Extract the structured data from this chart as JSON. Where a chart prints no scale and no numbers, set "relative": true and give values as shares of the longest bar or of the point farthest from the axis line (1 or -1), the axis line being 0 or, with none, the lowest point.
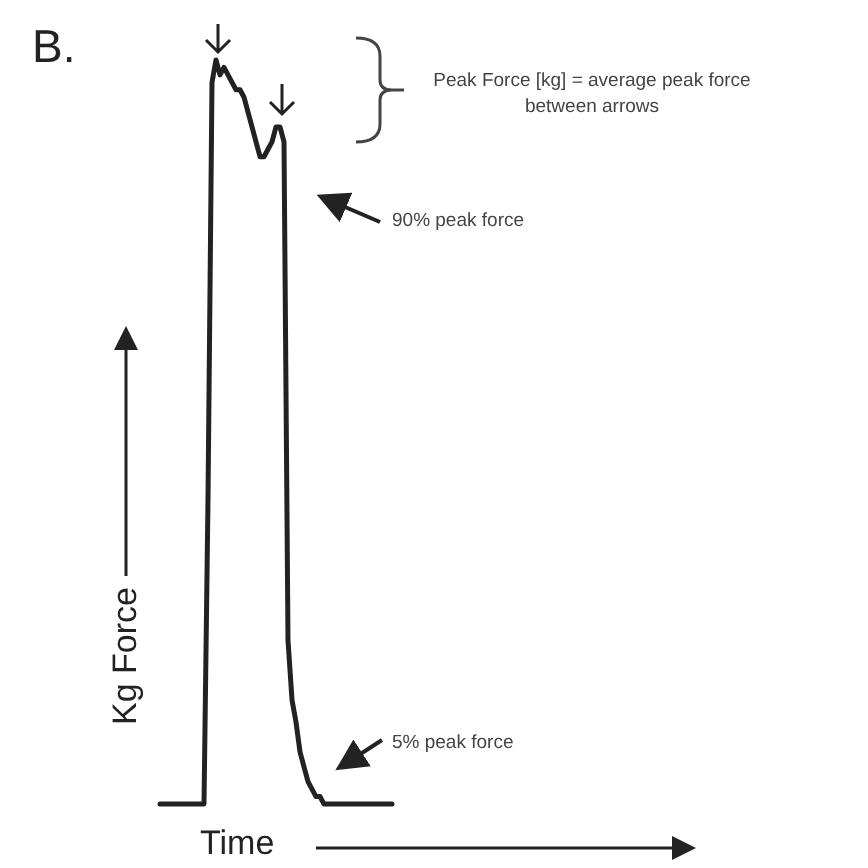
{
  "chart_data": {
    "type": "line",
    "title": "B.",
    "xlabel": "Time",
    "ylabel": "Kg Force",
    "annotations": [
      "Peak Force [kg] = average peak force between arrows",
      "90% peak force",
      "5% peak force"
    ],
    "relative": true,
    "marker": "none",
    "color": "#222222",
    "categories": [
      null,
      null,
      null,
      null,
      null,
      null,
      null,
      null,
      null,
      null,
      null,
      null,
      null,
      null,
      null,
      null,
      null,
      null,
      null,
      null,
      null,
      null,
      null,
      null,
      null,
      null,
      null,
      null,
      null,
      null,
      null,
      null,
      null,
      null,
      null,
      null,
      null,
      null,
      null,
      null,
      null,
      null,
      null,
      null,
      null,
      null,
      null,
      null,
      null,
      null,
      null,
      null,
      null,
      null,
      null,
      null,
      null,
      null,
      null
    ],
    "values": [
      0,
      0,
      0,
      0,
      0,
      0,
      0,
      0,
      0,
      0,
      0,
      0,
      0.41,
      0.97,
      1,
      0.98,
      0.99,
      0.98,
      0.97,
      0.96,
      0.96,
      0.95,
      0.93,
      0.91,
      0.89,
      0.87,
      0.87,
      0.88,
      0.89,
      0.91,
      0.91,
      0.89,
      0.22,
      0.14,
      0.11,
      0.07,
      0.05,
      0.03,
      0.02,
      0.01,
      0.01,
      0,
      0,
      0,
      0,
      0,
      0,
      0,
      0,
      0,
      0,
      0,
      0,
      0,
      0,
      0,
      0,
      0,
      0
    ]
  }
}
